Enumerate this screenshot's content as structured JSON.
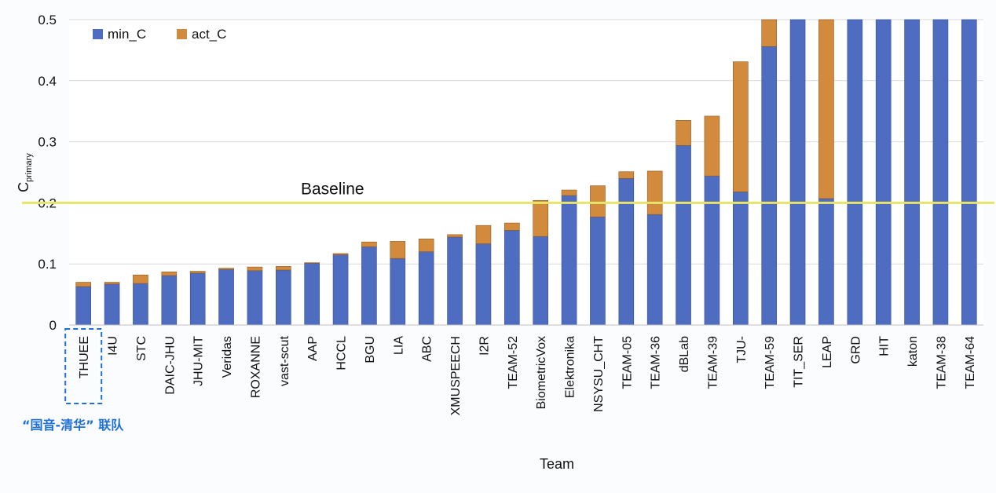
{
  "chart_data": {
    "type": "bar",
    "stacked": true,
    "xlabel": "Team",
    "ylabel": "C",
    "ylabel_sub": "primary",
    "ylim": [
      0,
      0.5
    ],
    "yticks": [
      "0",
      "0.1",
      "0.2",
      "0.3",
      "0.4",
      "0.5"
    ],
    "grid": true,
    "legend": "top-left",
    "categories": [
      "THUEE",
      "I4U",
      "STC",
      "DAIC-JHU",
      "JHU-MIT",
      "Veridas",
      "ROXANNE",
      "vast-scut",
      "AAP",
      "HCCL",
      "BGU",
      "LIA",
      "ABC",
      "XMUSPEECH",
      "I2R",
      "TEAM-52",
      "BiometricVox",
      "Elektronika",
      "NSYSU_CHT",
      "TEAM-05",
      "TEAM-36",
      "dBLab",
      "TEAM-39",
      "TJU-",
      "TEAM-59",
      "TIT_SER",
      "LEAP",
      "GRD",
      "HIT",
      "katon",
      "TEAM-38",
      "TEAM-64"
    ],
    "series": [
      {
        "name": "min_C",
        "color": "#4f6dc0",
        "values": [
          0.063,
          0.067,
          0.068,
          0.081,
          0.085,
          0.091,
          0.089,
          0.09,
          0.101,
          0.115,
          0.128,
          0.109,
          0.12,
          0.144,
          0.133,
          0.155,
          0.145,
          0.212,
          0.177,
          0.24,
          0.181,
          0.294,
          0.244,
          0.218,
          0.456,
          0.5,
          0.207,
          0.5,
          0.5,
          0.5,
          0.5,
          0.5
        ]
      },
      {
        "name": "act_C",
        "color": "#d28a3c",
        "values": [
          0.007,
          0.003,
          0.014,
          0.006,
          0.003,
          0.002,
          0.006,
          0.006,
          0.001,
          0.002,
          0.008,
          0.028,
          0.021,
          0.004,
          0.03,
          0.012,
          0.059,
          0.009,
          0.051,
          0.011,
          0.071,
          0.041,
          0.098,
          0.213,
          0.044,
          0,
          0.293,
          0,
          0,
          0,
          0,
          0
        ]
      }
    ],
    "reference_line": {
      "label": "Baseline",
      "value": 0.2,
      "color": "#e8e36a"
    },
    "highlight": {
      "category": "THUEE",
      "note": "“国音-清华” 联队",
      "color": "#1e6fd6"
    }
  }
}
